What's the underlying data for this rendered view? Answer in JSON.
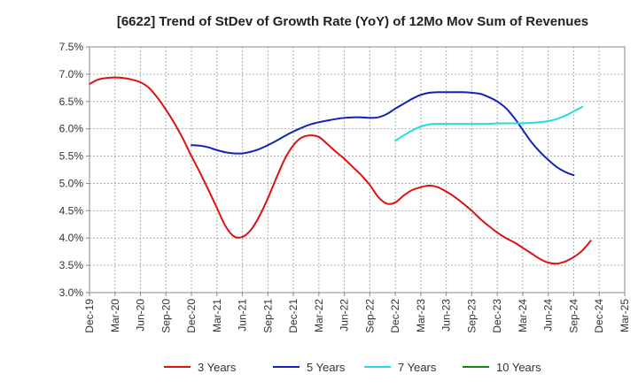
{
  "chart_data": {
    "type": "line",
    "title": "[6622]  Trend of StDev of Growth Rate (YoY) of 12Mo Mov Sum of Revenues",
    "xlabel": "",
    "ylabel": "",
    "ylim": [
      3.0,
      7.5
    ],
    "y_ticks": [
      {
        "value": 3.0,
        "label": "3.0%"
      },
      {
        "value": 3.5,
        "label": "3.5%"
      },
      {
        "value": 4.0,
        "label": "4.0%"
      },
      {
        "value": 4.5,
        "label": "4.5%"
      },
      {
        "value": 5.0,
        "label": "5.0%"
      },
      {
        "value": 5.5,
        "label": "5.5%"
      },
      {
        "value": 6.0,
        "label": "6.0%"
      },
      {
        "value": 6.5,
        "label": "6.5%"
      },
      {
        "value": 7.0,
        "label": "7.0%"
      },
      {
        "value": 7.5,
        "label": "7.5%"
      }
    ],
    "x_start": "Dec-19",
    "x_range_months": [
      0,
      63
    ],
    "x_ticks": [
      {
        "m": 0,
        "label": "Dec-19"
      },
      {
        "m": 3,
        "label": "Mar-20"
      },
      {
        "m": 6,
        "label": "Jun-20"
      },
      {
        "m": 9,
        "label": "Sep-20"
      },
      {
        "m": 12,
        "label": "Dec-20"
      },
      {
        "m": 15,
        "label": "Mar-21"
      },
      {
        "m": 18,
        "label": "Jun-21"
      },
      {
        "m": 21,
        "label": "Sep-21"
      },
      {
        "m": 24,
        "label": "Dec-21"
      },
      {
        "m": 27,
        "label": "Mar-22"
      },
      {
        "m": 30,
        "label": "Jun-22"
      },
      {
        "m": 33,
        "label": "Sep-22"
      },
      {
        "m": 36,
        "label": "Dec-22"
      },
      {
        "m": 39,
        "label": "Mar-23"
      },
      {
        "m": 42,
        "label": "Jun-23"
      },
      {
        "m": 45,
        "label": "Sep-23"
      },
      {
        "m": 48,
        "label": "Dec-23"
      },
      {
        "m": 51,
        "label": "Mar-24"
      },
      {
        "m": 54,
        "label": "Jun-24"
      },
      {
        "m": 57,
        "label": "Sep-24"
      },
      {
        "m": 60,
        "label": "Dec-24"
      },
      {
        "m": 63,
        "label": "Mar-25"
      }
    ],
    "grid": true,
    "legend_position": "bottom",
    "series": [
      {
        "name": "3 Years",
        "color": "#dd1111",
        "points": [
          [
            0,
            6.82
          ],
          [
            1,
            6.9
          ],
          [
            2,
            6.93
          ],
          [
            3,
            6.94
          ],
          [
            4,
            6.93
          ],
          [
            5,
            6.9
          ],
          [
            6,
            6.85
          ],
          [
            7,
            6.75
          ],
          [
            8,
            6.57
          ],
          [
            9,
            6.35
          ],
          [
            10,
            6.1
          ],
          [
            11,
            5.82
          ],
          [
            12,
            5.5
          ],
          [
            13,
            5.2
          ],
          [
            14,
            4.88
          ],
          [
            15,
            4.55
          ],
          [
            16,
            4.22
          ],
          [
            17,
            4.03
          ],
          [
            18,
            4.02
          ],
          [
            19,
            4.15
          ],
          [
            20,
            4.4
          ],
          [
            21,
            4.73
          ],
          [
            22,
            5.1
          ],
          [
            23,
            5.45
          ],
          [
            24,
            5.7
          ],
          [
            25,
            5.84
          ],
          [
            26,
            5.88
          ],
          [
            27,
            5.85
          ],
          [
            28,
            5.72
          ],
          [
            29,
            5.58
          ],
          [
            30,
            5.45
          ],
          [
            31,
            5.3
          ],
          [
            32,
            5.15
          ],
          [
            33,
            4.97
          ],
          [
            34,
            4.75
          ],
          [
            35,
            4.63
          ],
          [
            36,
            4.65
          ],
          [
            37,
            4.78
          ],
          [
            38,
            4.88
          ],
          [
            39,
            4.93
          ],
          [
            40,
            4.96
          ],
          [
            41,
            4.93
          ],
          [
            42,
            4.85
          ],
          [
            43,
            4.75
          ],
          [
            44,
            4.63
          ],
          [
            45,
            4.5
          ],
          [
            46,
            4.35
          ],
          [
            47,
            4.22
          ],
          [
            48,
            4.1
          ],
          [
            49,
            4.0
          ],
          [
            50,
            3.92
          ],
          [
            51,
            3.82
          ],
          [
            52,
            3.72
          ],
          [
            53,
            3.62
          ],
          [
            54,
            3.55
          ],
          [
            55,
            3.53
          ],
          [
            56,
            3.57
          ],
          [
            57,
            3.65
          ],
          [
            58,
            3.77
          ],
          [
            59,
            3.95
          ]
        ]
      },
      {
        "name": "5 Years",
        "color": "#1122bb",
        "points": [
          [
            12,
            5.7
          ],
          [
            13,
            5.69
          ],
          [
            14,
            5.66
          ],
          [
            15,
            5.61
          ],
          [
            16,
            5.57
          ],
          [
            17,
            5.55
          ],
          [
            18,
            5.55
          ],
          [
            19,
            5.58
          ],
          [
            20,
            5.63
          ],
          [
            21,
            5.7
          ],
          [
            22,
            5.78
          ],
          [
            23,
            5.87
          ],
          [
            24,
            5.95
          ],
          [
            25,
            6.02
          ],
          [
            26,
            6.08
          ],
          [
            27,
            6.12
          ],
          [
            28,
            6.15
          ],
          [
            29,
            6.18
          ],
          [
            30,
            6.2
          ],
          [
            31,
            6.21
          ],
          [
            32,
            6.21
          ],
          [
            33,
            6.2
          ],
          [
            34,
            6.21
          ],
          [
            35,
            6.27
          ],
          [
            36,
            6.37
          ],
          [
            37,
            6.46
          ],
          [
            38,
            6.55
          ],
          [
            39,
            6.62
          ],
          [
            40,
            6.66
          ],
          [
            41,
            6.67
          ],
          [
            42,
            6.67
          ],
          [
            43,
            6.67
          ],
          [
            44,
            6.67
          ],
          [
            45,
            6.66
          ],
          [
            46,
            6.64
          ],
          [
            47,
            6.58
          ],
          [
            48,
            6.5
          ],
          [
            49,
            6.38
          ],
          [
            50,
            6.2
          ],
          [
            51,
            5.98
          ],
          [
            52,
            5.76
          ],
          [
            53,
            5.58
          ],
          [
            54,
            5.43
          ],
          [
            55,
            5.3
          ],
          [
            56,
            5.21
          ],
          [
            57,
            5.15
          ]
        ]
      },
      {
        "name": "7 Years",
        "color": "#22dddd",
        "points": [
          [
            36,
            5.78
          ],
          [
            37,
            5.88
          ],
          [
            38,
            5.97
          ],
          [
            39,
            6.04
          ],
          [
            40,
            6.08
          ],
          [
            41,
            6.09
          ],
          [
            42,
            6.09
          ],
          [
            43,
            6.09
          ],
          [
            44,
            6.09
          ],
          [
            45,
            6.09
          ],
          [
            46,
            6.09
          ],
          [
            47,
            6.09
          ],
          [
            48,
            6.1
          ],
          [
            49,
            6.1
          ],
          [
            50,
            6.1
          ],
          [
            51,
            6.1
          ],
          [
            52,
            6.11
          ],
          [
            53,
            6.12
          ],
          [
            54,
            6.14
          ],
          [
            55,
            6.18
          ],
          [
            56,
            6.24
          ],
          [
            57,
            6.32
          ],
          [
            58,
            6.4
          ]
        ]
      },
      {
        "name": "10 Years",
        "color": "#118811",
        "points": []
      }
    ]
  }
}
